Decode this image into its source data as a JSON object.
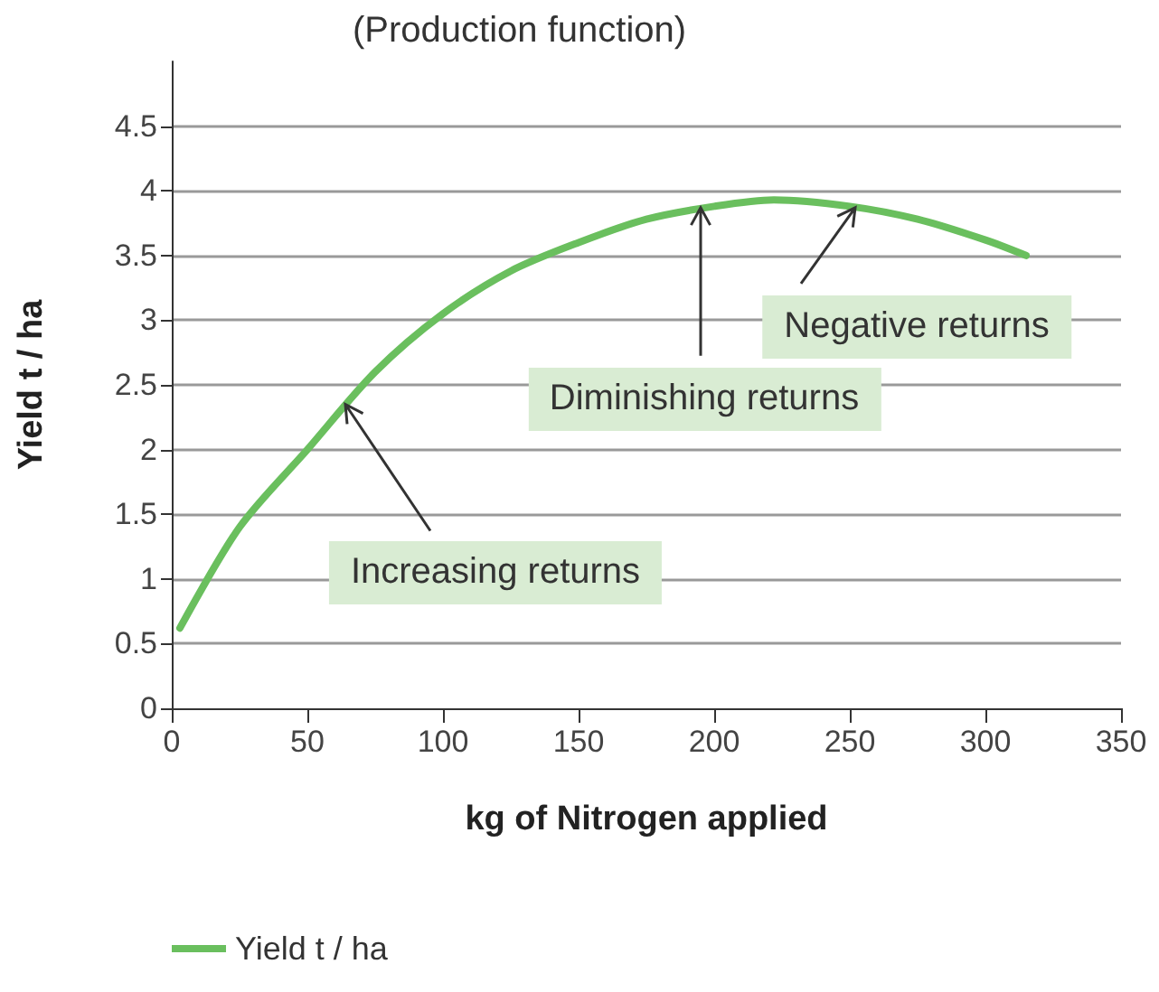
{
  "chart_data": {
    "type": "line",
    "title": "(Production function)",
    "xlabel": "kg of Nitrogen applied",
    "ylabel": "Yield t / ha",
    "x": [
      3,
      25,
      50,
      75,
      100,
      125,
      150,
      175,
      200,
      222,
      250,
      275,
      300,
      315
    ],
    "series": [
      {
        "name": "Yield t / ha",
        "color": "#6abf5e",
        "values": [
          0.62,
          1.4,
          2.0,
          2.6,
          3.05,
          3.38,
          3.6,
          3.78,
          3.88,
          3.93,
          3.88,
          3.78,
          3.62,
          3.5
        ]
      }
    ],
    "xlim": [
      0,
      350
    ],
    "xticks": [
      0,
      50,
      100,
      150,
      200,
      250,
      300,
      350
    ],
    "ylim": [
      0,
      5
    ],
    "yticks": [
      0,
      0.5,
      1,
      1.5,
      2,
      2.5,
      3,
      3.5,
      4,
      4.5
    ],
    "grid": "y",
    "legend": "bottom left",
    "marker": "none",
    "line_style": "solid",
    "annotations": [
      {
        "text": "Increasing returns",
        "x": 64,
        "y": 2.35
      },
      {
        "text": "Diminishing returns",
        "x": 195,
        "y": 3.87
      },
      {
        "text": "Negative returns",
        "x": 252,
        "y": 3.87
      }
    ]
  }
}
